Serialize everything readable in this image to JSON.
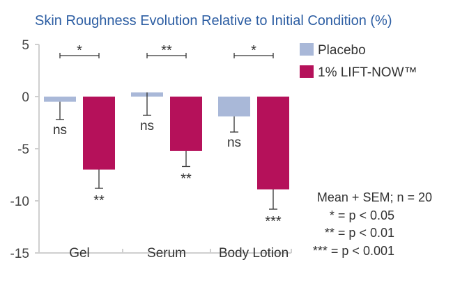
{
  "chart_data": {
    "type": "bar",
    "title": "Skin Roughness Evolution Relative to Initial Condition (%)",
    "categories": [
      "Gel",
      "Serum",
      "Body Lotion"
    ],
    "ylim": [
      -15,
      5
    ],
    "yticks": [
      "5",
      "0",
      "-5",
      "-10",
      "-15"
    ],
    "grid": false,
    "legend_position": "top-right",
    "series": [
      {
        "name": "Placebo",
        "color": "#a9b8d8",
        "values": [
          -0.5,
          0.4,
          -1.9
        ],
        "errors": [
          1.7,
          2.2,
          1.5
        ],
        "labels": [
          "ns",
          "ns",
          "ns"
        ]
      },
      {
        "name": "1% LIFT-NOW™",
        "color": "#b5115a",
        "values": [
          -7.0,
          -5.2,
          -8.9
        ],
        "errors": [
          1.8,
          1.5,
          1.9
        ],
        "labels": [
          "**",
          "**",
          "***"
        ]
      }
    ],
    "comparisons": [
      "*",
      "**",
      "*"
    ],
    "notes": [
      "Mean + SEM; n = 20",
      "* = p < 0.05",
      "** = p < 0.01",
      "*** = p < 0.001"
    ]
  }
}
